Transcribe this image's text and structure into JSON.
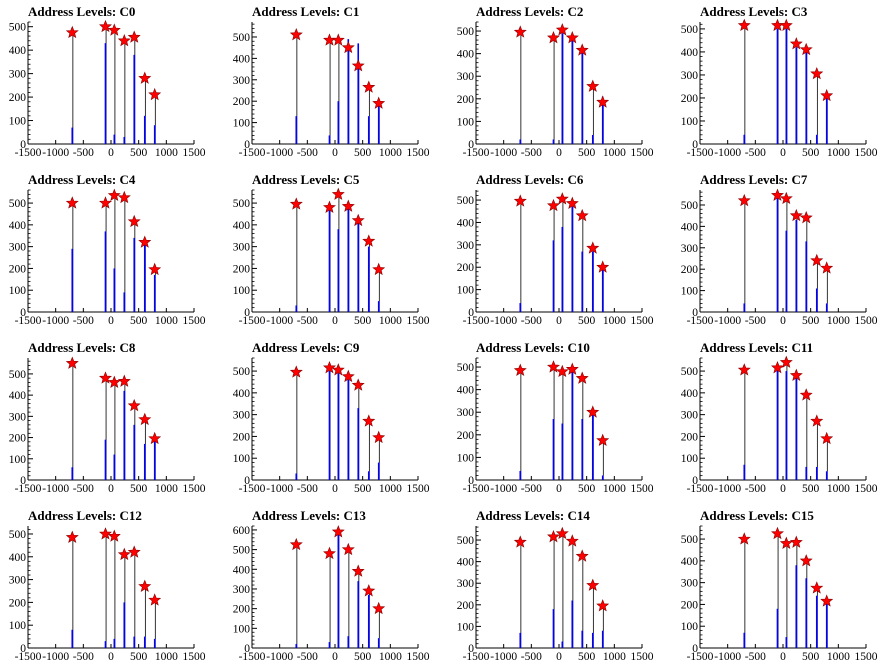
{
  "window": {
    "title": ""
  },
  "chart_data": [
    {
      "type": "bar",
      "title": "Address Levels: C0",
      "x": [
        -700,
        -100,
        60,
        240,
        420,
        610,
        790
      ],
      "values": [
        475,
        500,
        485,
        440,
        455,
        280,
        210
      ],
      "peaks": [
        70,
        430,
        40,
        30,
        380,
        120,
        80
      ],
      "xlim": [
        -1500,
        1500
      ],
      "ylim": [
        0,
        520
      ],
      "xticks": [
        -1500,
        -1000,
        -500,
        0,
        500,
        1000,
        1500
      ],
      "yticks": [
        0,
        100,
        200,
        300,
        400,
        500
      ],
      "xtick_labels": [
        "-1500",
        "-1000",
        "-500",
        "0",
        "500",
        "1000",
        "1500"
      ],
      "ytick_labels": [
        "0",
        "100",
        "200",
        "300",
        "400",
        "500"
      ]
    },
    {
      "type": "bar",
      "title": "Address Levels: C1",
      "x": [
        -700,
        -100,
        60,
        240,
        420,
        610,
        790
      ],
      "values": [
        510,
        485,
        485,
        450,
        365,
        265,
        190
      ],
      "peaks": [
        130,
        40,
        200,
        490,
        470,
        130,
        200
      ],
      "xlim": [
        -1500,
        1500
      ],
      "ylim": [
        0,
        570
      ],
      "xticks": [
        -1500,
        -1000,
        -500,
        0,
        500,
        1000,
        1500
      ],
      "yticks": [
        0,
        100,
        200,
        300,
        400,
        500
      ],
      "xtick_labels": [
        "-1500",
        "-1000",
        "-500",
        "0",
        "500",
        "1000",
        "1500"
      ],
      "ytick_labels": [
        "0",
        "100",
        "200",
        "300",
        "400",
        "500"
      ]
    },
    {
      "type": "bar",
      "title": "Address Levels: C2",
      "x": [
        -700,
        -100,
        60,
        240,
        420,
        610,
        790
      ],
      "values": [
        495,
        470,
        505,
        470,
        415,
        255,
        185
      ],
      "peaks": [
        20,
        20,
        490,
        470,
        410,
        40,
        210
      ],
      "xlim": [
        -1500,
        1500
      ],
      "ylim": [
        0,
        540
      ],
      "xticks": [
        -1500,
        -1000,
        -500,
        0,
        500,
        1000,
        1500
      ],
      "yticks": [
        0,
        100,
        200,
        300,
        400,
        500
      ],
      "xtick_labels": [
        "-1500",
        "-1000",
        "-500",
        "0",
        "500",
        "1000",
        "1500"
      ],
      "ytick_labels": [
        "0",
        "100",
        "200",
        "300",
        "400",
        "500"
      ]
    },
    {
      "type": "bar",
      "title": "Address Levels: C3",
      "x": [
        -700,
        -100,
        60,
        240,
        420,
        610,
        790
      ],
      "values": [
        515,
        515,
        515,
        435,
        410,
        305,
        210
      ],
      "peaks": [
        40,
        500,
        500,
        420,
        400,
        40,
        220
      ],
      "xlim": [
        -1500,
        1500
      ],
      "ylim": [
        0,
        530
      ],
      "xticks": [
        -1500,
        -1000,
        -500,
        0,
        500,
        1000,
        1500
      ],
      "yticks": [
        0,
        100,
        200,
        300,
        400,
        500
      ],
      "xtick_labels": [
        "-1500",
        "-1000",
        "-500",
        "0",
        "500",
        "1000",
        "1500"
      ],
      "ytick_labels": [
        "0",
        "100",
        "200",
        "300",
        "400",
        "500"
      ]
    },
    {
      "type": "bar",
      "title": "Address Levels: C4",
      "x": [
        -700,
        -100,
        60,
        240,
        420,
        610,
        790
      ],
      "values": [
        500,
        500,
        535,
        525,
        415,
        320,
        195
      ],
      "peaks": [
        290,
        370,
        200,
        90,
        340,
        310,
        170
      ],
      "xlim": [
        -1500,
        1500
      ],
      "ylim": [
        0,
        560
      ],
      "xticks": [
        -1500,
        -1000,
        -500,
        0,
        500,
        1000,
        1500
      ],
      "yticks": [
        0,
        100,
        200,
        300,
        400,
        500
      ],
      "xtick_labels": [
        "-1500",
        "-1000",
        "-500",
        "0",
        "500",
        "1000",
        "1500"
      ],
      "ytick_labels": [
        "0",
        "100",
        "200",
        "300",
        "400",
        "500"
      ]
    },
    {
      "type": "bar",
      "title": "Address Levels: C5",
      "x": [
        -700,
        -100,
        60,
        240,
        420,
        610,
        790
      ],
      "values": [
        495,
        480,
        540,
        485,
        420,
        325,
        195
      ],
      "peaks": [
        30,
        470,
        380,
        480,
        410,
        300,
        50
      ],
      "xlim": [
        -1500,
        1500
      ],
      "ylim": [
        0,
        560
      ],
      "xticks": [
        -1500,
        -1000,
        -500,
        0,
        500,
        1000,
        1500
      ],
      "yticks": [
        0,
        100,
        200,
        300,
        400,
        500
      ],
      "xtick_labels": [
        "-1500",
        "-1000",
        "-500",
        "0",
        "500",
        "1000",
        "1500"
      ],
      "ytick_labels": [
        "0",
        "100",
        "200",
        "300",
        "400",
        "500"
      ]
    },
    {
      "type": "bar",
      "title": "Address Levels: C6",
      "x": [
        -700,
        -100,
        60,
        240,
        420,
        610,
        790
      ],
      "values": [
        495,
        475,
        505,
        485,
        430,
        285,
        200
      ],
      "peaks": [
        40,
        320,
        380,
        470,
        270,
        270,
        200
      ],
      "xlim": [
        -1500,
        1500
      ],
      "ylim": [
        0,
        545
      ],
      "xticks": [
        -1500,
        -1000,
        -500,
        0,
        500,
        1000,
        1500
      ],
      "yticks": [
        0,
        100,
        200,
        300,
        400,
        500
      ],
      "xtick_labels": [
        "-1500",
        "-1000",
        "-500",
        "0",
        "500",
        "1000",
        "1500"
      ],
      "ytick_labels": [
        "0",
        "100",
        "200",
        "300",
        "400",
        "500"
      ]
    },
    {
      "type": "bar",
      "title": "Address Levels: C7",
      "x": [
        -700,
        -100,
        60,
        240,
        420,
        610,
        790
      ],
      "values": [
        520,
        545,
        530,
        450,
        440,
        240,
        205
      ],
      "peaks": [
        40,
        530,
        380,
        430,
        330,
        110,
        40
      ],
      "xlim": [
        -1500,
        1500
      ],
      "ylim": [
        0,
        570
      ],
      "xticks": [
        -1500,
        -1000,
        -500,
        0,
        500,
        1000,
        1500
      ],
      "yticks": [
        0,
        100,
        200,
        300,
        400,
        500
      ],
      "xtick_labels": [
        "-1500",
        "-1000",
        "-500",
        "0",
        "500",
        "1000",
        "1500"
      ],
      "ytick_labels": [
        "0",
        "100",
        "200",
        "300",
        "400",
        "500"
      ]
    },
    {
      "type": "bar",
      "title": "Address Levels: C8",
      "x": [
        -700,
        -100,
        60,
        240,
        420,
        610,
        790
      ],
      "values": [
        550,
        480,
        460,
        465,
        350,
        285,
        195
      ],
      "peaks": [
        60,
        190,
        120,
        420,
        260,
        170,
        200
      ],
      "xlim": [
        -1500,
        1500
      ],
      "ylim": [
        0,
        575
      ],
      "xticks": [
        -1500,
        -1000,
        -500,
        0,
        500,
        1000,
        1500
      ],
      "yticks": [
        0,
        100,
        200,
        300,
        400,
        500
      ],
      "xtick_labels": [
        "-1500",
        "-1000",
        "-500",
        "0",
        "500",
        "1000",
        "1500"
      ],
      "ytick_labels": [
        "0",
        "100",
        "200",
        "300",
        "400",
        "500"
      ]
    },
    {
      "type": "bar",
      "title": "Address Levels: C9",
      "x": [
        -700,
        -100,
        60,
        240,
        420,
        610,
        790
      ],
      "values": [
        495,
        515,
        505,
        475,
        435,
        270,
        195
      ],
      "peaks": [
        30,
        500,
        490,
        460,
        330,
        40,
        80
      ],
      "xlim": [
        -1500,
        1500
      ],
      "ylim": [
        0,
        560
      ],
      "xticks": [
        -1500,
        -1000,
        -500,
        0,
        500,
        1000,
        1500
      ],
      "yticks": [
        0,
        100,
        200,
        300,
        400,
        500
      ],
      "xtick_labels": [
        "-1500",
        "-1000",
        "-500",
        "0",
        "500",
        "1000",
        "1500"
      ],
      "ytick_labels": [
        "0",
        "100",
        "200",
        "300",
        "400",
        "500"
      ]
    },
    {
      "type": "bar",
      "title": "Address Levels: C10",
      "x": [
        -700,
        -100,
        60,
        240,
        420,
        610,
        790
      ],
      "values": [
        485,
        500,
        480,
        490,
        450,
        300,
        175
      ],
      "peaks": [
        40,
        270,
        250,
        480,
        270,
        290,
        20
      ],
      "xlim": [
        -1500,
        1500
      ],
      "ylim": [
        0,
        540
      ],
      "xticks": [
        -1500,
        -1000,
        -500,
        0,
        500,
        1000,
        1500
      ],
      "yticks": [
        0,
        100,
        200,
        300,
        400,
        500
      ],
      "xtick_labels": [
        "-1500",
        "-1000",
        "-500",
        "0",
        "500",
        "1000",
        "1500"
      ],
      "ytick_labels": [
        "0",
        "100",
        "200",
        "300",
        "400",
        "500"
      ]
    },
    {
      "type": "bar",
      "title": "Address Levels: C11",
      "x": [
        -700,
        -100,
        60,
        240,
        420,
        610,
        790
      ],
      "values": [
        505,
        515,
        540,
        480,
        390,
        270,
        190
      ],
      "peaks": [
        70,
        510,
        500,
        480,
        60,
        60,
        40
      ],
      "xlim": [
        -1500,
        1500
      ],
      "ylim": [
        0,
        560
      ],
      "xticks": [
        -1500,
        -1000,
        -500,
        0,
        500,
        1000,
        1500
      ],
      "yticks": [
        0,
        100,
        200,
        300,
        400,
        500
      ],
      "xtick_labels": [
        "-1500",
        "-1000",
        "-500",
        "0",
        "500",
        "1000",
        "1500"
      ],
      "ytick_labels": [
        "0",
        "100",
        "200",
        "300",
        "400",
        "500"
      ]
    },
    {
      "type": "bar",
      "title": "Address Levels: C12",
      "x": [
        -700,
        -100,
        60,
        240,
        420,
        610,
        790
      ],
      "values": [
        485,
        500,
        490,
        410,
        420,
        270,
        210
      ],
      "peaks": [
        80,
        30,
        40,
        200,
        50,
        50,
        40
      ],
      "xlim": [
        -1500,
        1500
      ],
      "ylim": [
        0,
        535
      ],
      "xticks": [
        -1500,
        -1000,
        -500,
        0,
        500,
        1000,
        1500
      ],
      "yticks": [
        0,
        100,
        200,
        300,
        400,
        500
      ],
      "xtick_labels": [
        "-1500",
        "-1000",
        "-500",
        "0",
        "500",
        "1000",
        "1500"
      ],
      "ytick_labels": [
        "0",
        "100",
        "200",
        "300",
        "400",
        "500"
      ]
    },
    {
      "type": "bar",
      "title": "Address Levels: C13",
      "x": [
        -700,
        -100,
        60,
        240,
        420,
        610,
        790
      ],
      "values": [
        525,
        480,
        590,
        500,
        390,
        290,
        200
      ],
      "peaks": [
        20,
        30,
        580,
        60,
        340,
        270,
        50
      ],
      "xlim": [
        -1500,
        1500
      ],
      "ylim": [
        0,
        620
      ],
      "xticks": [
        -1500,
        -1000,
        -500,
        0,
        500,
        1000,
        1500
      ],
      "yticks": [
        0,
        100,
        200,
        300,
        400,
        500,
        600
      ],
      "xtick_labels": [
        "-1500",
        "-1000",
        "-500",
        "0",
        "500",
        "1000",
        "1500"
      ],
      "ytick_labels": [
        "0",
        "100",
        "200",
        "300",
        "400",
        "500",
        "600"
      ]
    },
    {
      "type": "bar",
      "title": "Address Levels: C14",
      "x": [
        -700,
        -100,
        60,
        240,
        420,
        610,
        790
      ],
      "values": [
        490,
        515,
        530,
        495,
        425,
        290,
        195
      ],
      "peaks": [
        70,
        180,
        30,
        220,
        80,
        70,
        80
      ],
      "xlim": [
        -1500,
        1500
      ],
      "ylim": [
        0,
        565
      ],
      "xticks": [
        -1500,
        -1000,
        -500,
        0,
        500,
        1000,
        1500
      ],
      "yticks": [
        0,
        100,
        200,
        300,
        400,
        500
      ],
      "xtick_labels": [
        "-1500",
        "-1000",
        "-500",
        "0",
        "500",
        "1000",
        "1500"
      ],
      "ytick_labels": [
        "0",
        "100",
        "200",
        "300",
        "400",
        "500"
      ]
    },
    {
      "type": "bar",
      "title": "Address Levels: C15",
      "x": [
        -700,
        -100,
        60,
        240,
        420,
        610,
        790
      ],
      "values": [
        500,
        525,
        480,
        485,
        400,
        275,
        215
      ],
      "peaks": [
        70,
        180,
        50,
        380,
        320,
        240,
        210
      ],
      "xlim": [
        -1500,
        1500
      ],
      "ylim": [
        0,
        560
      ],
      "xticks": [
        -1500,
        -1000,
        -500,
        0,
        500,
        1000,
        1500
      ],
      "yticks": [
        0,
        100,
        200,
        300,
        400,
        500
      ],
      "xtick_labels": [
        "-1500",
        "-1000",
        "-500",
        "0",
        "500",
        "1000",
        "1500"
      ],
      "ytick_labels": [
        "0",
        "100",
        "200",
        "300",
        "400",
        "500"
      ]
    }
  ],
  "style": {
    "hist_color": "#0000ff",
    "marker_color": "#ff0000",
    "axis_color": "#000000"
  }
}
